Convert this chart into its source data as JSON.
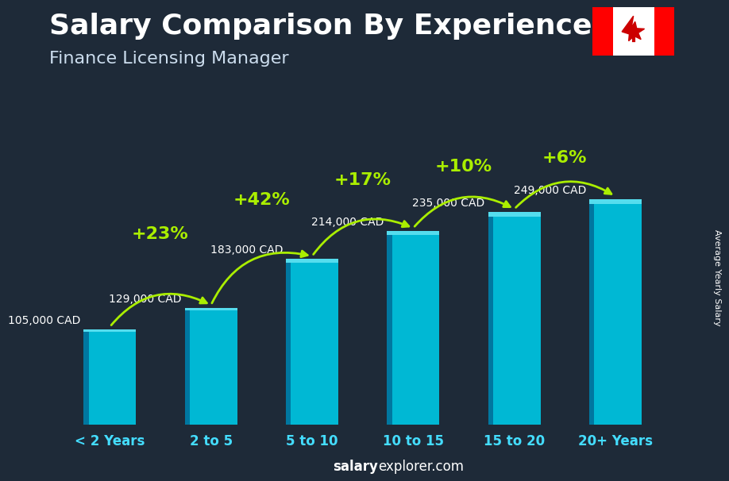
{
  "title": "Salary Comparison By Experience",
  "subtitle": "Finance Licensing Manager",
  "categories": [
    "< 2 Years",
    "2 to 5",
    "5 to 10",
    "10 to 15",
    "15 to 20",
    "20+ Years"
  ],
  "values": [
    105000,
    129000,
    183000,
    214000,
    235000,
    249000
  ],
  "labels": [
    "105,000 CAD",
    "129,000 CAD",
    "183,000 CAD",
    "214,000 CAD",
    "235,000 CAD",
    "249,000 CAD"
  ],
  "pct_changes": [
    "+23%",
    "+42%",
    "+17%",
    "+10%",
    "+6%"
  ],
  "bar_face_color": "#00b8d4",
  "bar_left_color": "#0077a0",
  "bar_top_color": "#55ddee",
  "bg_color": "#1e2a38",
  "title_color": "#ffffff",
  "subtitle_color": "#ccddee",
  "label_color": "#ffffff",
  "pct_color": "#aaee00",
  "cat_color": "#44ddff",
  "footer_salary": "salary",
  "footer_rest": "explorer.com",
  "right_label": "Average Yearly Salary",
  "ylim": [
    0,
    320000
  ],
  "bar_width": 0.52,
  "pct_fontsize": 16,
  "label_fontsize": 10,
  "cat_fontsize": 12,
  "title_fontsize": 26,
  "subtitle_fontsize": 16
}
